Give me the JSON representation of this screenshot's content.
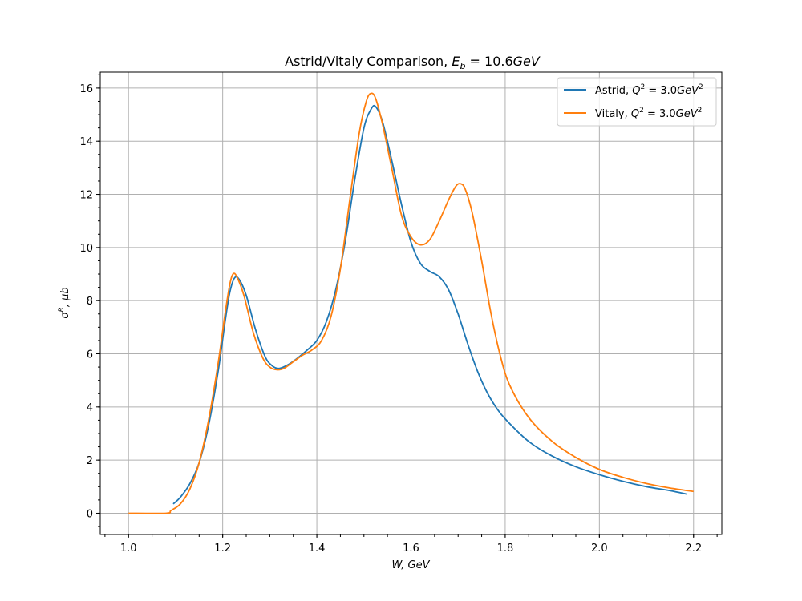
{
  "chart_data": {
    "type": "line",
    "title_main": "Astrid/Vitaly Comparison, ",
    "title_sym": "E",
    "title_sub": "b",
    "title_rest": " = 10.6",
    "title_unit": "GeV",
    "xlabel": "W, GeV",
    "ylabel_sym": "σ",
    "ylabel_sup": "R",
    "ylabel_rest": ", μb",
    "xlim": [
      0.94,
      2.26
    ],
    "ylim": [
      -0.8,
      16.6
    ],
    "xticks": [
      "1.0",
      "1.2",
      "1.4",
      "1.6",
      "1.8",
      "2.0",
      "2.2"
    ],
    "yticks": [
      "0",
      "2",
      "4",
      "6",
      "8",
      "10",
      "12",
      "14",
      "16"
    ],
    "grid": true,
    "legend_position": "upper-right",
    "series": [
      {
        "name_prefix": "Astrid, ",
        "name_sym": "Q",
        "name_sup": "2",
        "name_rest": " = 3.0",
        "name_unit": "GeV",
        "name_unit_sup": "2",
        "color": "#1f77b4",
        "points": [
          [
            1.095,
            0.35
          ],
          [
            1.11,
            0.6
          ],
          [
            1.13,
            1.1
          ],
          [
            1.15,
            1.9
          ],
          [
            1.17,
            3.3
          ],
          [
            1.19,
            5.3
          ],
          [
            1.205,
            7.2
          ],
          [
            1.215,
            8.3
          ],
          [
            1.225,
            8.85
          ],
          [
            1.235,
            8.8
          ],
          [
            1.25,
            8.2
          ],
          [
            1.27,
            6.9
          ],
          [
            1.29,
            5.9
          ],
          [
            1.305,
            5.55
          ],
          [
            1.32,
            5.45
          ],
          [
            1.34,
            5.6
          ],
          [
            1.36,
            5.85
          ],
          [
            1.38,
            6.15
          ],
          [
            1.4,
            6.5
          ],
          [
            1.42,
            7.2
          ],
          [
            1.44,
            8.4
          ],
          [
            1.46,
            10.2
          ],
          [
            1.48,
            12.5
          ],
          [
            1.5,
            14.5
          ],
          [
            1.515,
            15.2
          ],
          [
            1.525,
            15.3
          ],
          [
            1.54,
            14.7
          ],
          [
            1.56,
            13.2
          ],
          [
            1.58,
            11.6
          ],
          [
            1.6,
            10.2
          ],
          [
            1.62,
            9.4
          ],
          [
            1.64,
            9.1
          ],
          [
            1.66,
            8.9
          ],
          [
            1.68,
            8.4
          ],
          [
            1.7,
            7.5
          ],
          [
            1.72,
            6.4
          ],
          [
            1.74,
            5.4
          ],
          [
            1.76,
            4.6
          ],
          [
            1.78,
            4.0
          ],
          [
            1.8,
            3.55
          ],
          [
            1.85,
            2.7
          ],
          [
            1.9,
            2.15
          ],
          [
            1.95,
            1.75
          ],
          [
            2.0,
            1.45
          ],
          [
            2.05,
            1.2
          ],
          [
            2.1,
            1.0
          ],
          [
            2.15,
            0.85
          ],
          [
            2.185,
            0.72
          ]
        ]
      },
      {
        "name_prefix": "Vitaly, ",
        "name_sym": "Q",
        "name_sup": "2",
        "name_rest": " = 3.0",
        "name_unit": "GeV",
        "name_unit_sup": "2",
        "color": "#ff7f0e",
        "points": [
          [
            1.0,
            0.0
          ],
          [
            1.08,
            0.0
          ],
          [
            1.09,
            0.1
          ],
          [
            1.11,
            0.35
          ],
          [
            1.13,
            0.9
          ],
          [
            1.15,
            1.9
          ],
          [
            1.17,
            3.5
          ],
          [
            1.19,
            5.6
          ],
          [
            1.205,
            7.5
          ],
          [
            1.215,
            8.6
          ],
          [
            1.222,
            9.0
          ],
          [
            1.23,
            8.9
          ],
          [
            1.245,
            8.2
          ],
          [
            1.265,
            6.8
          ],
          [
            1.285,
            5.85
          ],
          [
            1.3,
            5.5
          ],
          [
            1.315,
            5.4
          ],
          [
            1.33,
            5.45
          ],
          [
            1.35,
            5.7
          ],
          [
            1.37,
            5.95
          ],
          [
            1.39,
            6.15
          ],
          [
            1.41,
            6.5
          ],
          [
            1.43,
            7.4
          ],
          [
            1.45,
            9.2
          ],
          [
            1.47,
            11.8
          ],
          [
            1.49,
            14.3
          ],
          [
            1.505,
            15.5
          ],
          [
            1.515,
            15.8
          ],
          [
            1.525,
            15.6
          ],
          [
            1.54,
            14.6
          ],
          [
            1.56,
            12.9
          ],
          [
            1.58,
            11.2
          ],
          [
            1.6,
            10.4
          ],
          [
            1.62,
            10.1
          ],
          [
            1.64,
            10.3
          ],
          [
            1.66,
            11.0
          ],
          [
            1.68,
            11.8
          ],
          [
            1.695,
            12.3
          ],
          [
            1.705,
            12.4
          ],
          [
            1.715,
            12.2
          ],
          [
            1.73,
            11.3
          ],
          [
            1.75,
            9.5
          ],
          [
            1.77,
            7.5
          ],
          [
            1.79,
            5.9
          ],
          [
            1.81,
            4.8
          ],
          [
            1.85,
            3.6
          ],
          [
            1.9,
            2.7
          ],
          [
            1.95,
            2.1
          ],
          [
            2.0,
            1.65
          ],
          [
            2.05,
            1.35
          ],
          [
            2.1,
            1.12
          ],
          [
            2.15,
            0.95
          ],
          [
            2.2,
            0.82
          ]
        ]
      }
    ]
  }
}
